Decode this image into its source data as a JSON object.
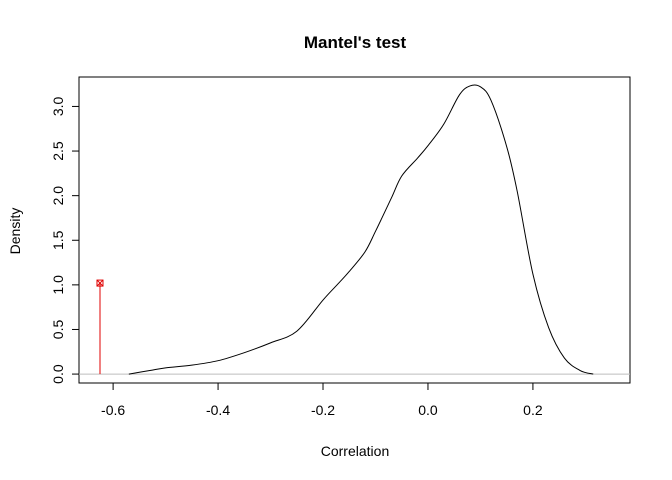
{
  "chart_data": {
    "type": "line",
    "title": "Mantel's test",
    "xlabel": "Correlation",
    "ylabel": "Density",
    "xlim": [
      -0.665,
      0.385
    ],
    "ylim": [
      -0.1,
      3.33
    ],
    "x_ticks": [
      -0.6,
      -0.4,
      -0.2,
      0.0,
      0.2
    ],
    "x_tick_labels": [
      "-0.6",
      "-0.4",
      "-0.2",
      "0.0",
      "0.2"
    ],
    "y_ticks": [
      0.0,
      0.5,
      1.0,
      1.5,
      2.0,
      2.5,
      3.0
    ],
    "y_tick_labels": [
      "0.0",
      "0.5",
      "1.0",
      "1.5",
      "2.0",
      "2.5",
      "3.0"
    ],
    "baseline": {
      "y": 0,
      "color": "#bebebe"
    },
    "series": [
      {
        "color": "#000000",
        "points": [
          [
            -0.57,
            0.0
          ],
          [
            -0.53,
            0.04
          ],
          [
            -0.5,
            0.07
          ],
          [
            -0.45,
            0.1
          ],
          [
            -0.4,
            0.15
          ],
          [
            -0.35,
            0.24
          ],
          [
            -0.3,
            0.35
          ],
          [
            -0.25,
            0.48
          ],
          [
            -0.2,
            0.83
          ],
          [
            -0.17,
            1.02
          ],
          [
            -0.15,
            1.15
          ],
          [
            -0.12,
            1.37
          ],
          [
            -0.1,
            1.6
          ],
          [
            -0.07,
            1.97
          ],
          [
            -0.05,
            2.22
          ],
          [
            -0.02,
            2.42
          ],
          [
            0.0,
            2.56
          ],
          [
            0.03,
            2.8
          ],
          [
            0.06,
            3.13
          ],
          [
            0.08,
            3.23
          ],
          [
            0.1,
            3.22
          ],
          [
            0.12,
            3.07
          ],
          [
            0.15,
            2.55
          ],
          [
            0.17,
            2.05
          ],
          [
            0.2,
            1.12
          ],
          [
            0.23,
            0.52
          ],
          [
            0.26,
            0.18
          ],
          [
            0.29,
            0.04
          ],
          [
            0.315,
            0.0
          ]
        ]
      }
    ],
    "observed": {
      "x": -0.625,
      "y": 1.02,
      "color": "#e00000",
      "marker": "boxed-cross"
    }
  }
}
